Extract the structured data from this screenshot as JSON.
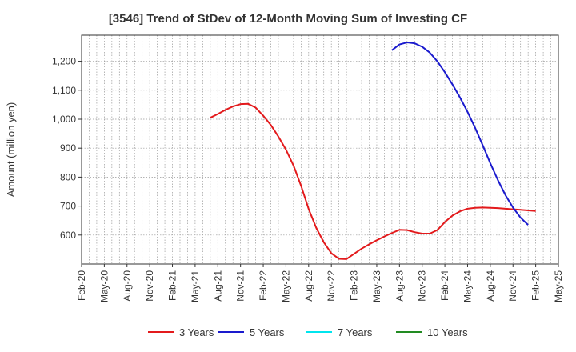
{
  "chart_data": {
    "type": "line",
    "title": "[3546]  Trend of StDev of 12-Month Moving Sum of Investing CF",
    "ylabel": "Amount (million yen)",
    "xlabel": "",
    "ylim": [
      500,
      1290
    ],
    "yticks": [
      600,
      700,
      800,
      900,
      1000,
      1100,
      1200
    ],
    "ytick_labels": [
      "600",
      "700",
      "800",
      "900",
      "1,000",
      "1,100",
      "1,200"
    ],
    "x_start": "Feb-20",
    "x_end": "May-25",
    "x_tick_labels": [
      "Feb-20",
      "May-20",
      "Aug-20",
      "Nov-20",
      "Feb-21",
      "May-21",
      "Aug-21",
      "Nov-21",
      "Feb-22",
      "May-22",
      "Aug-22",
      "Nov-22",
      "Feb-23",
      "May-23",
      "Aug-23",
      "Nov-23",
      "Feb-24",
      "May-24",
      "Aug-24",
      "Nov-24",
      "Feb-25",
      "May-25"
    ],
    "grid": true,
    "legend_position": "bottom",
    "series": [
      {
        "name": "3 Years",
        "color": "#e31a1c",
        "points": [
          [
            "Jul-21",
            1005
          ],
          [
            "Aug-21",
            1018
          ],
          [
            "Sep-21",
            1032
          ],
          [
            "Oct-21",
            1044
          ],
          [
            "Nov-21",
            1052
          ],
          [
            "Dec-21",
            1053
          ],
          [
            "Jan-22",
            1040
          ],
          [
            "Feb-22",
            1012
          ],
          [
            "Mar-22",
            980
          ],
          [
            "Apr-22",
            940
          ],
          [
            "May-22",
            895
          ],
          [
            "Jun-22",
            840
          ],
          [
            "Jul-22",
            770
          ],
          [
            "Aug-22",
            690
          ],
          [
            "Sep-22",
            625
          ],
          [
            "Oct-22",
            575
          ],
          [
            "Nov-22",
            537
          ],
          [
            "Dec-22",
            518
          ],
          [
            "Jan-23",
            517
          ],
          [
            "Feb-23",
            535
          ],
          [
            "Mar-23",
            553
          ],
          [
            "Apr-23",
            568
          ],
          [
            "May-23",
            582
          ],
          [
            "Jun-23",
            595
          ],
          [
            "Jul-23",
            607
          ],
          [
            "Aug-23",
            618
          ],
          [
            "Sep-23",
            617
          ],
          [
            "Oct-23",
            610
          ],
          [
            "Nov-23",
            605
          ],
          [
            "Dec-23",
            605
          ],
          [
            "Jan-24",
            617
          ],
          [
            "Feb-24",
            645
          ],
          [
            "Mar-24",
            667
          ],
          [
            "Apr-24",
            682
          ],
          [
            "May-24",
            691
          ],
          [
            "Jun-24",
            694
          ],
          [
            "Jul-24",
            695
          ],
          [
            "Aug-24",
            694
          ],
          [
            "Sep-24",
            693
          ],
          [
            "Oct-24",
            691
          ],
          [
            "Nov-24",
            689
          ],
          [
            "Dec-24",
            687
          ],
          [
            "Jan-25",
            685
          ],
          [
            "Feb-25",
            683
          ]
        ]
      },
      {
        "name": "5 Years",
        "color": "#1a1acd",
        "points": [
          [
            "Jul-23",
            1238
          ],
          [
            "Aug-23",
            1258
          ],
          [
            "Sep-23",
            1265
          ],
          [
            "Oct-23",
            1262
          ],
          [
            "Nov-23",
            1250
          ],
          [
            "Dec-23",
            1230
          ],
          [
            "Jan-24",
            1200
          ],
          [
            "Feb-24",
            1162
          ],
          [
            "Mar-24",
            1120
          ],
          [
            "Apr-24",
            1075
          ],
          [
            "May-24",
            1025
          ],
          [
            "Jun-24",
            970
          ],
          [
            "Jul-24",
            910
          ],
          [
            "Aug-24",
            848
          ],
          [
            "Sep-24",
            790
          ],
          [
            "Oct-24",
            738
          ],
          [
            "Nov-24",
            695
          ],
          [
            "Dec-24",
            660
          ],
          [
            "Jan-25",
            635
          ]
        ]
      },
      {
        "name": "7 Years",
        "color": "#00e5ee",
        "points": []
      },
      {
        "name": "10 Years",
        "color": "#228b22",
        "points": []
      }
    ]
  }
}
